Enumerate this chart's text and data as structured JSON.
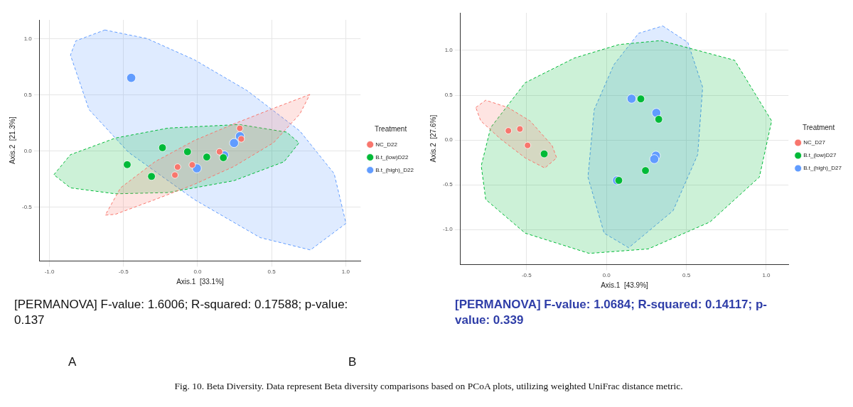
{
  "chart_data": [
    {
      "type": "scatter",
      "xlabel": "Axis.1  [33.1%]",
      "ylabel": "Axis.2  [21.3%]",
      "legend_title": "Treatment",
      "legend": "right",
      "grid": true,
      "xlim": [
        -1.066,
        1.1
      ],
      "ylim": [
        -0.98,
        1.17
      ],
      "xticks": [
        {
          "value": -1,
          "label": "-1.0"
        },
        {
          "value": -0.5,
          "label": "-0.5"
        },
        {
          "value": 0,
          "label": "0.0"
        },
        {
          "value": 0.5,
          "label": "0.5"
        },
        {
          "value": 1,
          "label": "1.0"
        }
      ],
      "yticks": [
        {
          "value": -0.5,
          "label": "-0.5"
        },
        {
          "value": 0,
          "label": "0.0"
        },
        {
          "value": 0.5,
          "label": "0.5"
        },
        {
          "value": 1,
          "label": "1.0"
        }
      ],
      "series": [
        {
          "name": "NC_D22",
          "marker": "circle",
          "color": "#f8766d",
          "x": [
            0.285,
            0.295,
            0.148,
            -0.036,
            -0.135,
            -0.153
          ],
          "values": [
            0.203,
            0.108,
            -0.006,
            -0.123,
            -0.142,
            -0.214
          ]
        },
        {
          "name": "B.t_(low)D22",
          "marker": "circle",
          "color": "#00ba38",
          "x": [
            -0.237,
            -0.068,
            0.062,
            0.174,
            -0.475,
            -0.311
          ],
          "values": [
            0.03,
            -0.006,
            -0.053,
            -0.059,
            -0.121,
            -0.226
          ]
        },
        {
          "name": "B.t_(high)_D22",
          "marker": "circle",
          "color": "#619cff",
          "x": [
            -0.448,
            0.286,
            0.246,
            0.18,
            -0.005
          ],
          "values": [
            0.653,
            0.133,
            0.072,
            -0.038,
            -0.154
          ]
        },
        {
          "type": "area",
          "line_style": "dashed",
          "color": "#f8766d",
          "x": [
            0.758,
            0.512,
            0.246,
            -0.021,
            -0.288,
            -0.52,
            -0.623,
            -0.555,
            -0.288,
            -0.021,
            0.246,
            0.512,
            0.69
          ],
          "values": [
            0.505,
            0.381,
            0.243,
            0.095,
            -0.095,
            -0.328,
            -0.571,
            -0.564,
            -0.433,
            -0.296,
            -0.137,
            0.074,
            0.33
          ]
        },
        {
          "type": "area",
          "line_style": "dashed",
          "color": "#00ba38",
          "x": [
            -0.97,
            -0.858,
            -0.555,
            -0.199,
            0.281,
            0.601,
            0.685,
            0.584,
            0.246,
            -0.199,
            -0.555,
            -0.858
          ],
          "values": [
            -0.211,
            -0.032,
            0.116,
            0.205,
            0.237,
            0.169,
            0.074,
            -0.095,
            -0.264,
            -0.37,
            -0.381,
            -0.328
          ]
        },
        {
          "type": "area",
          "line_style": "dashed",
          "color": "#619cff",
          "x": [
            -0.626,
            -0.342,
            -0.021,
            0.335,
            0.69,
            0.922,
            1.002,
            0.762,
            0.423,
            -0.021,
            -0.466,
            -0.733,
            -0.858,
            -0.822
          ],
          "values": [
            1.08,
            1.004,
            0.814,
            0.539,
            0.18,
            -0.201,
            -0.645,
            -0.882,
            -0.772,
            -0.433,
            -0.011,
            0.37,
            0.856,
            0.983
          ]
        }
      ],
      "annotations": [
        "[PERMANOVA] F-value: 1.6006; R-squared: 0.17588; p-value: 0.137",
        "A"
      ]
    },
    {
      "type": "scatter",
      "xlabel": "Axis.1  [43.9%]",
      "ylabel": "Axis.2  [27.6%]",
      "legend_title": "Treatment",
      "legend": "right",
      "grid": true,
      "xlim": [
        -0.914,
        1.139
      ],
      "ylim": [
        -1.39,
        1.42
      ],
      "xticks": [
        {
          "value": -0.5,
          "label": "-0.5"
        },
        {
          "value": 0,
          "label": "0.0"
        },
        {
          "value": 0.5,
          "label": "0.5"
        },
        {
          "value": 1,
          "label": "1.0"
        }
      ],
      "yticks": [
        {
          "value": -1,
          "label": "-1.0"
        },
        {
          "value": -0.5,
          "label": "-0.5"
        },
        {
          "value": 0,
          "label": "0.0"
        },
        {
          "value": 0.5,
          "label": "0.5"
        },
        {
          "value": 1,
          "label": "1.0"
        }
      ],
      "series": [
        {
          "name": "NC_D27",
          "marker": "circle",
          "color": "#f8766d",
          "x": [
            -0.614,
            -0.542,
            -0.494
          ],
          "values": [
            0.103,
            0.123,
            -0.06
          ]
        },
        {
          "name": "B.t_(low)D27",
          "marker": "circle",
          "color": "#00ba38",
          "x": [
            -0.39,
            0.215,
            0.327,
            0.244,
            0.077
          ],
          "values": [
            -0.155,
            0.459,
            0.231,
            -0.341,
            -0.451
          ]
        },
        {
          "name": "B.t_(high)_D27",
          "marker": "circle",
          "color": "#619cff",
          "x": [
            0.157,
            0.312,
            0.309,
            0.299,
            0.066
          ],
          "values": [
            0.461,
            0.303,
            -0.175,
            -0.213,
            -0.451
          ]
        },
        {
          "type": "area",
          "line_style": "dashed",
          "color": "#f8766d",
          "x": [
            -0.818,
            -0.756,
            -0.617,
            -0.478,
            -0.34,
            -0.312,
            -0.386,
            -0.509,
            -0.664,
            -0.787
          ],
          "values": [
            0.363,
            0.444,
            0.363,
            0.213,
            -0.063,
            -0.2,
            -0.313,
            -0.2,
            0.013,
            0.213
          ]
        },
        {
          "type": "area",
          "line_style": "dashed",
          "color": "#00ba38",
          "x": [
            0.34,
            0.802,
            1.034,
            0.957,
            0.648,
            0.262,
            -0.108,
            -0.509,
            -0.756,
            -0.784,
            -0.725,
            -0.509,
            -0.201,
            0.077
          ],
          "values": [
            1.11,
            0.89,
            0.213,
            -0.414,
            -0.915,
            -1.216,
            -1.266,
            -1.04,
            -0.664,
            -0.288,
            0.138,
            0.639,
            0.915,
            1.065
          ]
        },
        {
          "type": "area",
          "line_style": "dashed",
          "color": "#619cff",
          "x": [
            0.352,
            0.509,
            0.602,
            0.571,
            0.417,
            0.139,
            -0.015,
            -0.116,
            -0.077,
            0.046,
            0.201
          ],
          "values": [
            1.273,
            1.09,
            0.589,
            -0.163,
            -0.789,
            -1.203,
            -1.04,
            -0.414,
            0.338,
            0.84,
            1.191
          ]
        }
      ],
      "annotations": [
        "[PERMANOVA] F-value: 1.0684; R-squared: 0.14117; p-value: 0.339",
        "B",
        "Fig. 10. Beta Diversity. Data represent Beta diversity comparisons based on PCoA plots, utilizing weighted UniFrac distance metric."
      ]
    }
  ]
}
